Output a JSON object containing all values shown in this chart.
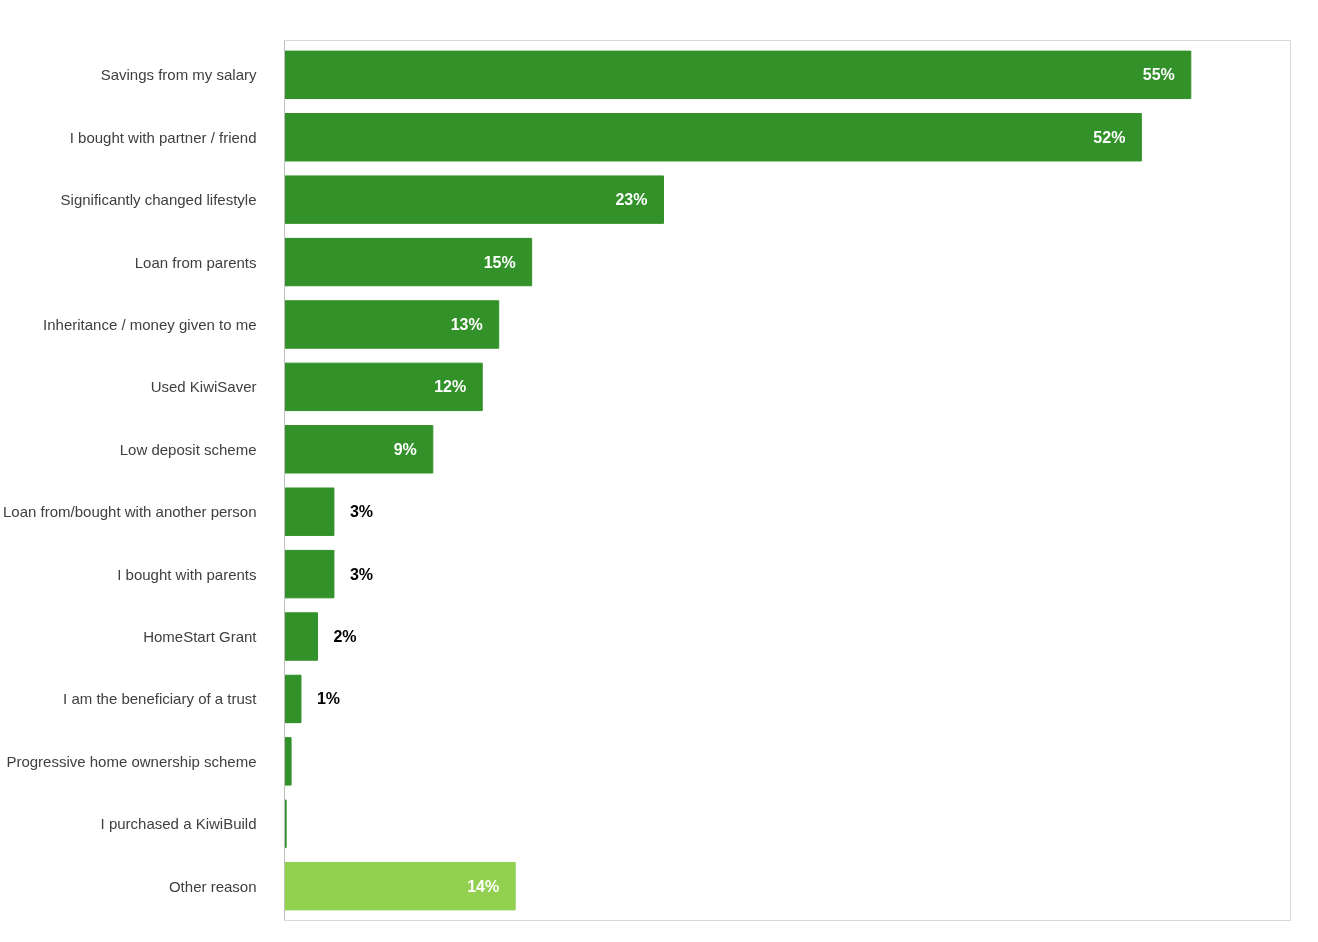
{
  "chart_data": {
    "type": "bar",
    "orientation": "horizontal",
    "categories": [
      "Savings from my salary",
      "I bought with partner / friend",
      "Significantly changed lifestyle",
      "Loan from parents",
      "Inheritance / money given to me",
      "Used KiwiSaver",
      "Low deposit scheme",
      "Loan from/bought with another person",
      "I bought with parents",
      "HomeStart Grant",
      "I am the beneficiary of a trust",
      "Progressive home ownership scheme",
      "I purchased a KiwiBuild",
      "Other reason"
    ],
    "values": [
      55,
      52,
      23,
      15,
      13,
      12,
      9,
      3,
      3,
      2,
      1,
      0.4,
      0.1,
      14
    ],
    "value_labels": [
      "55%",
      "52%",
      "23%",
      "15%",
      "13%",
      "12%",
      "9%",
      "3%",
      "3%",
      "2%",
      "1%",
      null,
      null,
      "14%"
    ],
    "colors": [
      "#339129",
      "#339129",
      "#339129",
      "#339129",
      "#339129",
      "#339129",
      "#339129",
      "#339129",
      "#339129",
      "#339129",
      "#339129",
      "#339129",
      "#339129",
      "#92d050"
    ],
    "grid": false
  }
}
